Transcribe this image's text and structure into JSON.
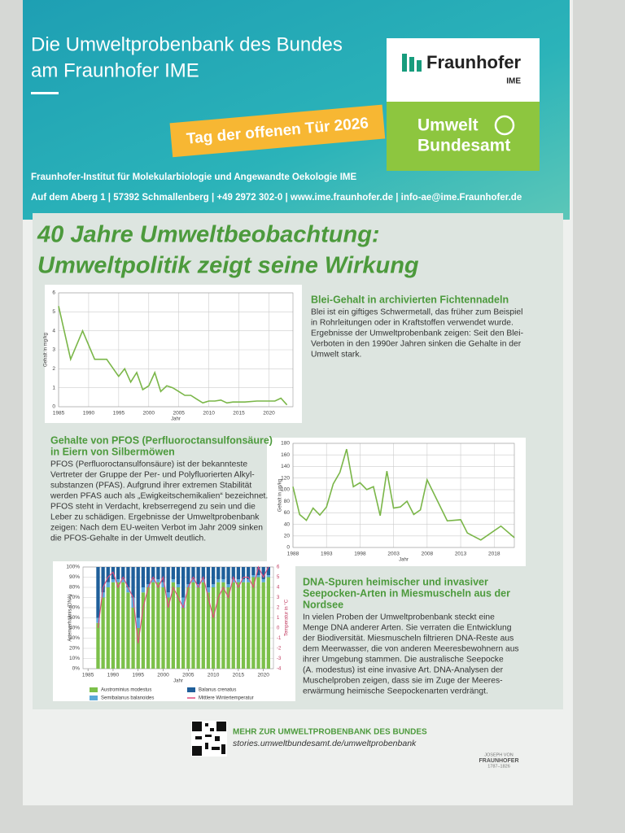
{
  "header": {
    "title": [
      "Die Umweltprobenbank des Bundes",
      "am Fraunhofer IME"
    ],
    "badge": "Tag der offenen Tür 2026",
    "logo_fraunhofer": "Fraunhofer",
    "logo_ime": "IME",
    "logo_uba": [
      "Umwelt",
      "Bundesamt"
    ],
    "institute": "Fraunhofer-Institut für Molekularbiologie und Angewandte Oekologie IME",
    "address": "Auf dem Aberg 1 | 57392 Schmallenberg | +49 2972 302-0 | www.ime.fraunhofer.de | info-ae@ime.Fraunhofer.de"
  },
  "headline": [
    "40 Jahre Umweltbeobachtung:",
    "Umweltpolitik zeigt seine Wirkung"
  ],
  "sections": [
    {
      "heading": [
        "Blei-Gehalt in archivierten Fichtennadeln"
      ],
      "body": [
        "Blei ist ein giftiges Schwermetall, das früher zum Beispiel",
        "in Rohrleitungen oder in Kraftstoffen verwendet wurde.",
        "Ergebnisse der Umweltprobenbank zeigen: Seit den Blei-",
        "Verboten in den 1990er Jahren sinken die Gehalte in der",
        "Umwelt stark."
      ]
    },
    {
      "heading": [
        "Gehalte von PFOS (Perfluoroctansulfonsäure)",
        "in Eiern von Silbermöwen"
      ],
      "body": [
        "PFOS (Perfluoroctansulfonsäure) ist der bekannteste",
        "Vertreter der Gruppe der Per- und Polyfluorierten Alkyl-",
        "substanzen (PFAS). Aufgrund ihrer extremen Stabilität",
        "werden PFAS auch als „Ewigkeitschemikalien“ bezeichnet.",
        "PFOS steht in Verdacht, krebserregend zu sein und die",
        "Leber zu schädigen. Ergebnisse der Umweltprobenbank",
        "zeigen: Nach dem EU-weiten Verbot im Jahr 2009 sinken",
        "die PFOS-Gehalte in der Umwelt deutlich."
      ]
    },
    {
      "heading": [
        "DNA-Spuren heimischer und invasiver",
        "Seepocken-Arten in Miesmuscheln aus der",
        "Nordsee"
      ],
      "body": [
        "In vielen Proben der Umweltprobenbank steckt eine",
        "Menge DNA anderer Arten. Sie verraten die Entwicklung",
        "der Biodiversität. Miesmuscheln filtrieren DNA-Reste aus",
        "dem Meerwasser, die von anderen Meeresbewohnern aus",
        "ihrer Umgebung stammen. Die australische Seepocke",
        "(A. modestus) ist eine invasive Art. DNA-Analysen der",
        "Muschelproben zeigen, dass sie im Zuge der Meeres-",
        "erwärmung heimische Seepockenarten verdrängt."
      ]
    }
  ],
  "charts": [
    {
      "type": "line",
      "ylabel": "Gehalt in mg/kg",
      "xlabel": "Jahr",
      "color": "#7ab648",
      "grid": true,
      "x": [
        1985,
        1987,
        1989,
        1991,
        1993,
        1995,
        1996,
        1997,
        1998,
        1999,
        2000,
        2001,
        2002,
        2003,
        2004,
        2005,
        2006,
        2007,
        2008,
        2009,
        2010,
        2011,
        2012,
        2013,
        2014,
        2015,
        2016,
        2018,
        2020,
        2021,
        2022,
        2023
      ],
      "values": [
        5.3,
        2.5,
        4.0,
        2.5,
        2.5,
        1.6,
        2.0,
        1.3,
        1.8,
        0.9,
        1.1,
        1.8,
        0.8,
        1.1,
        1.0,
        0.8,
        0.6,
        0.6,
        0.4,
        0.2,
        0.3,
        0.3,
        0.35,
        0.2,
        0.25,
        0.25,
        0.25,
        0.3,
        0.3,
        0.3,
        0.45,
        0.1
      ],
      "xlim": [
        1985,
        2024
      ],
      "xticks": [
        1985,
        1990,
        1995,
        2000,
        2005,
        2010,
        2015,
        2020
      ],
      "ylim": [
        0,
        6
      ],
      "yticks": [
        0,
        1,
        2,
        3,
        4,
        5,
        6
      ]
    },
    {
      "type": "line",
      "ylabel": "Gehalt in µg/kg",
      "xlabel": "Jahr",
      "color": "#7ab648",
      "grid": true,
      "x": [
        1988,
        1989,
        1990,
        1991,
        1992,
        1993,
        1994,
        1995,
        1996,
        1997,
        1998,
        1999,
        2000,
        2001,
        2002,
        2003,
        2004,
        2005,
        2006,
        2007,
        2008,
        2011,
        2013,
        2014,
        2016,
        2019,
        2021
      ],
      "values": [
        105,
        57,
        47,
        68,
        56,
        70,
        110,
        130,
        170,
        105,
        112,
        100,
        105,
        55,
        132,
        68,
        70,
        80,
        57,
        65,
        117,
        46,
        48,
        25,
        13,
        37,
        17
      ],
      "xlim": [
        1988,
        2021
      ],
      "xticks": [
        1988,
        1993,
        1998,
        2003,
        2008,
        2013,
        2018
      ],
      "ylim": [
        0,
        180
      ],
      "yticks": [
        0,
        20,
        40,
        60,
        80,
        100,
        120,
        140,
        160,
        180
      ]
    },
    {
      "type": "stacked-bar-line",
      "ylabel": "Artenverhältnis (DNA)",
      "y2label": "Temperatur in °C",
      "xlabel": "Jahr",
      "x": [
        1987,
        1988,
        1989,
        1990,
        1991,
        1992,
        1993,
        1994,
        1995,
        1996,
        1997,
        1998,
        1999,
        2000,
        2001,
        2002,
        2003,
        2004,
        2005,
        2006,
        2007,
        2008,
        2009,
        2010,
        2011,
        2012,
        2013,
        2014,
        2015,
        2016,
        2017,
        2018,
        2019,
        2020,
        2021
      ],
      "series": [
        {
          "name": "Austrominius modestus",
          "color": "#7cc04a",
          "values": [
            45,
            70,
            80,
            85,
            85,
            85,
            75,
            60,
            40,
            75,
            80,
            85,
            85,
            80,
            70,
            85,
            80,
            60,
            80,
            85,
            80,
            85,
            75,
            80,
            85,
            85,
            80,
            85,
            85,
            85,
            85,
            90,
            90,
            85,
            90
          ]
        },
        {
          "name": "Semibalanus balanoides",
          "color": "#5aa9d8",
          "values": [
            5,
            5,
            5,
            3,
            3,
            3,
            5,
            10,
            10,
            5,
            3,
            3,
            3,
            5,
            5,
            3,
            3,
            10,
            3,
            3,
            3,
            3,
            5,
            3,
            3,
            3,
            3,
            3,
            3,
            3,
            3,
            2,
            2,
            3,
            2
          ]
        },
        {
          "name": "Balanus crenatus",
          "color": "#1f5f9a",
          "values": [
            50,
            25,
            15,
            12,
            12,
            12,
            20,
            30,
            50,
            20,
            17,
            12,
            12,
            15,
            25,
            12,
            17,
            30,
            17,
            12,
            17,
            12,
            20,
            17,
            12,
            12,
            17,
            12,
            12,
            12,
            12,
            8,
            8,
            12,
            8
          ]
        },
        {
          "name": "Mittlere Wintertemperatur",
          "color": "#e04a7a",
          "axis": "y2",
          "values": [
            0,
            4,
            5,
            5.5,
            4,
            5,
            4,
            3,
            -1.5,
            2,
            4,
            5,
            4,
            5,
            2,
            4,
            3,
            2,
            4,
            5,
            4,
            5,
            3,
            1,
            3,
            4,
            3,
            5,
            4,
            5,
            5,
            4,
            6,
            5,
            6
          ]
        }
      ],
      "xlim": [
        1984,
        2022
      ],
      "xticks": [
        1985,
        1990,
        1995,
        2000,
        2005,
        2010,
        2015,
        2020
      ],
      "ylim": [
        0,
        100
      ],
      "yticks": [
        {
          "value": 0,
          "label": "0%"
        },
        {
          "value": 10,
          "label": "10%"
        },
        {
          "value": 20,
          "label": "20%"
        },
        {
          "value": 30,
          "label": "30%"
        },
        {
          "value": 40,
          "label": "40%"
        },
        {
          "value": 50,
          "label": "50%"
        },
        {
          "value": 60,
          "label": "60%"
        },
        {
          "value": 70,
          "label": "70%"
        },
        {
          "value": 80,
          "label": "80%"
        },
        {
          "value": 90,
          "label": "90%"
        },
        {
          "value": 100,
          "label": "100%"
        }
      ],
      "y2lim": [
        -4,
        6
      ],
      "y2ticks": [
        -4,
        -3,
        -2,
        -1,
        0,
        1,
        2,
        3,
        4,
        5,
        6
      ]
    }
  ],
  "footer": {
    "more": "MEHR ZUR UMWELTPROBENBANK DES BUNDES",
    "url": "stories.umweltbundesamt.de/umweltprobenbank",
    "signature": [
      "JOSEPH VON",
      "FRAUNHOFER",
      "1787–1826"
    ]
  }
}
